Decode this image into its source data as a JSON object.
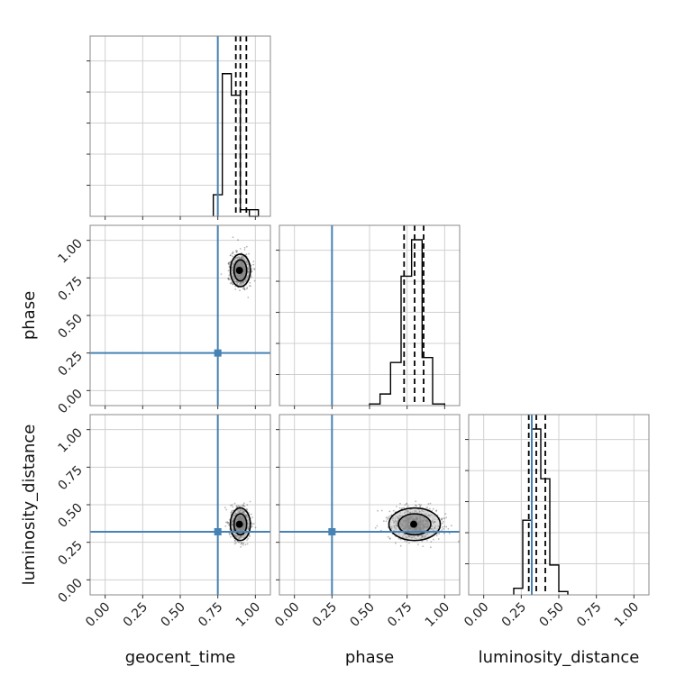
{
  "chart_data": {
    "type": "corner",
    "parameters": [
      "geocent_time",
      "phase",
      "luminosity_distance"
    ],
    "axis_labels": {
      "x": [
        "geocent_time",
        "phase",
        "luminosity_distance"
      ],
      "y": [
        "",
        "phase",
        "luminosity_distance"
      ]
    },
    "range": [
      -0.1,
      1.1
    ],
    "tick_values": [
      0.0,
      0.25,
      0.5,
      0.75,
      1.0
    ],
    "tick_labels": [
      "0.00",
      "0.25",
      "0.50",
      "0.75",
      "1.00"
    ],
    "grid": true,
    "truth_values": {
      "geocent_time": 0.75,
      "phase": 0.25,
      "luminosity_distance": 0.32
    },
    "truth_color": "#4682b4",
    "histogram_color": "#000000",
    "histograms": {
      "geocent_time": {
        "bin_edges": [
          0.72,
          0.78,
          0.84,
          0.9,
          0.96,
          1.02
        ],
        "density": [
          0.13,
          0.86,
          0.73,
          0.04,
          0.0
        ],
        "extra_bins": [
          [
            0.96,
            1.02,
            0.04
          ]
        ],
        "quantile_lines": [
          0.87,
          0.9,
          0.94
        ]
      },
      "phase": {
        "bin_edges": [
          0.5,
          0.57,
          0.64,
          0.71,
          0.78,
          0.85,
          0.92,
          1.0
        ],
        "density": [
          0.01,
          0.07,
          0.26,
          0.78,
          1.0,
          0.29,
          0.01
        ],
        "quantile_lines": [
          0.73,
          0.8,
          0.86
        ]
      },
      "luminosity_distance": {
        "bin_edges": [
          0.2,
          0.26,
          0.32,
          0.38,
          0.44,
          0.5,
          0.56
        ],
        "density": [
          0.04,
          0.45,
          1.0,
          0.7,
          0.18,
          0.02
        ],
        "quantile_lines": [
          0.3,
          0.35,
          0.41
        ]
      }
    },
    "posterior_2d": {
      "phase_vs_geocent_time": {
        "center": [
          0.9,
          0.8
        ],
        "spread": [
          0.035,
          0.07
        ]
      },
      "luminosity_distance_vs_geocent_time": {
        "center": [
          0.9,
          0.37
        ],
        "spread": [
          0.035,
          0.07
        ]
      },
      "luminosity_distance_vs_phase": {
        "center": [
          0.8,
          0.37
        ],
        "spread": [
          0.09,
          0.07
        ]
      }
    }
  }
}
